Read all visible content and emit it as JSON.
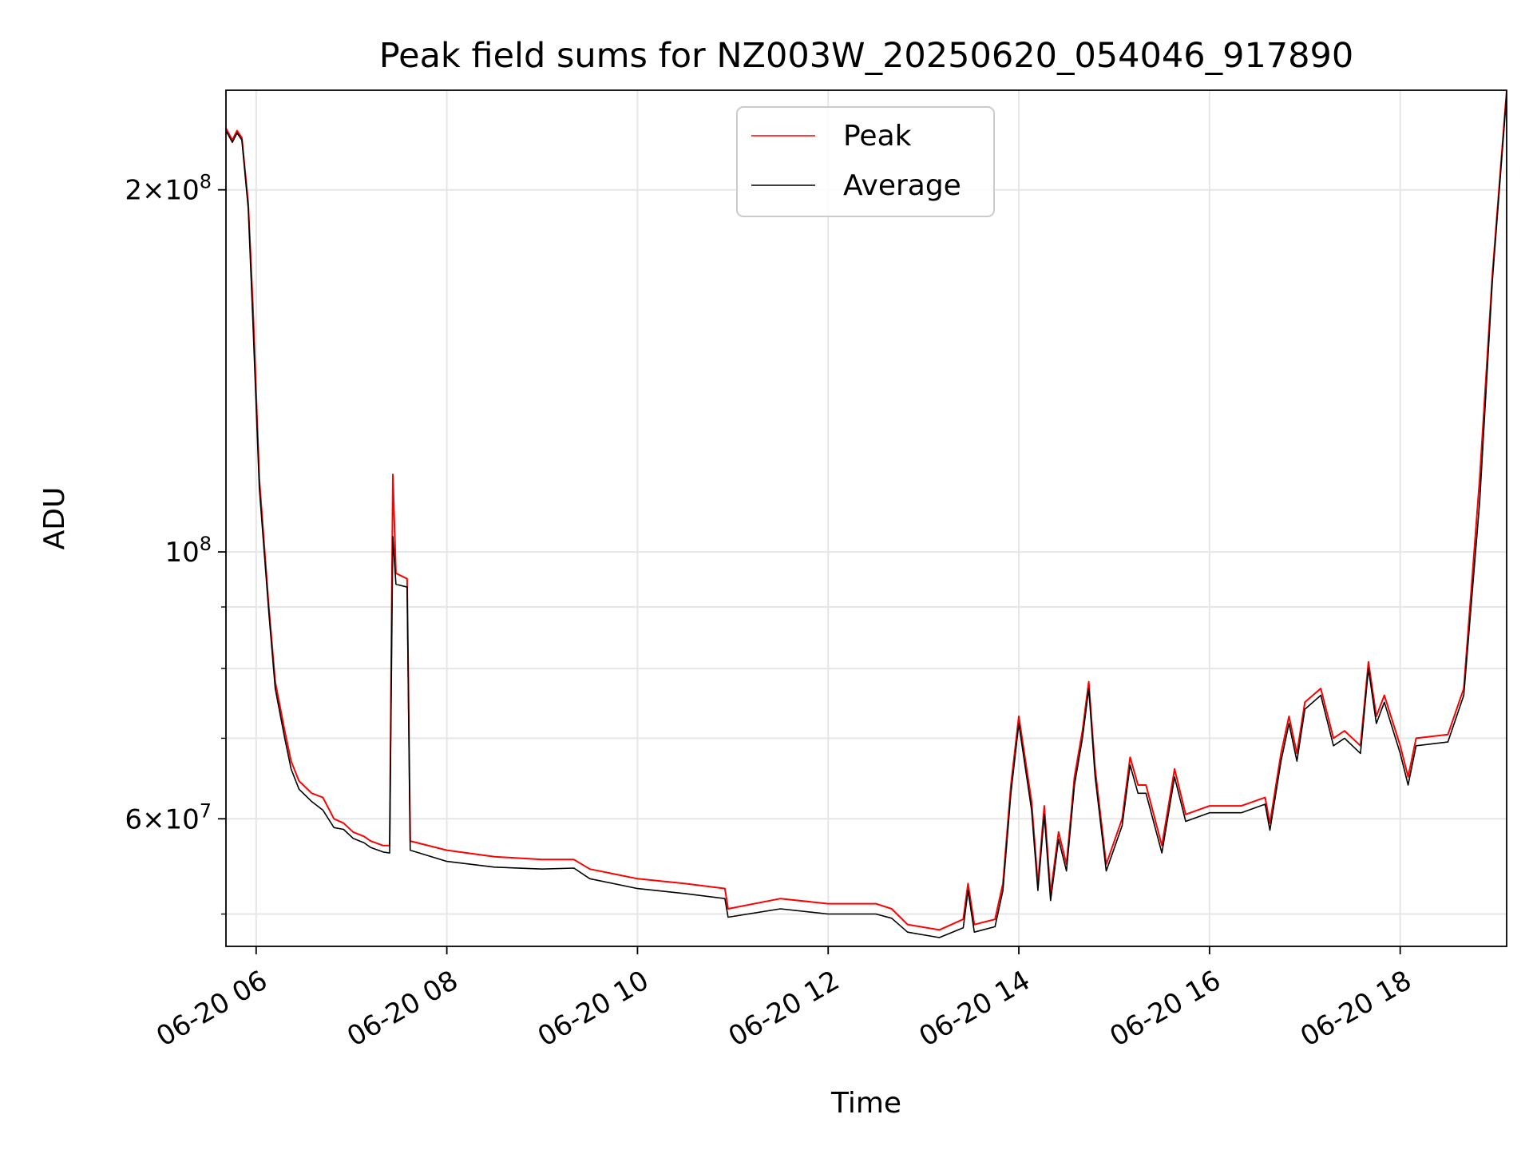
{
  "chart_data": {
    "type": "line",
    "title": "Peak field sums for NZ003W_20250620_054046_917890",
    "xlabel": "Time",
    "ylabel": "ADU",
    "x_scale": "time",
    "y_scale": "log",
    "xlim": [
      "2025-06-20 05:41",
      "2025-06-20 19:07"
    ],
    "ylim": [
      47000000,
      242000000
    ],
    "grid": true,
    "legend_position": "upper-center",
    "x_ticks": [
      {
        "value": "2025-06-20 06:00",
        "label": "06-20 06"
      },
      {
        "value": "2025-06-20 08:00",
        "label": "06-20 08"
      },
      {
        "value": "2025-06-20 10:00",
        "label": "06-20 10"
      },
      {
        "value": "2025-06-20 12:00",
        "label": "06-20 12"
      },
      {
        "value": "2025-06-20 14:00",
        "label": "06-20 14"
      },
      {
        "value": "2025-06-20 16:00",
        "label": "06-20 16"
      },
      {
        "value": "2025-06-20 18:00",
        "label": "06-20 18"
      }
    ],
    "y_major_ticks": [
      {
        "value": 60000000,
        "mantissa": "6",
        "exponent": "7"
      },
      {
        "value": 100000000,
        "mantissa": "",
        "exponent": "8"
      },
      {
        "value": 200000000,
        "mantissa": "2",
        "exponent": "8"
      }
    ],
    "y_minor_ticks": [
      50000000,
      70000000,
      80000000,
      90000000,
      300000000
    ],
    "series": [
      {
        "name": "Peak",
        "color": "#ff0000",
        "points": [
          [
            "2025-06-20 05:41",
            225000000
          ],
          [
            "2025-06-20 05:45",
            220000000
          ],
          [
            "2025-06-20 05:48",
            224000000
          ],
          [
            "2025-06-20 05:51",
            221000000
          ],
          [
            "2025-06-20 05:55",
            195000000
          ],
          [
            "2025-06-20 05:58",
            160000000
          ],
          [
            "2025-06-20 06:02",
            115000000
          ],
          [
            "2025-06-20 06:08",
            90000000
          ],
          [
            "2025-06-20 06:12",
            78000000
          ],
          [
            "2025-06-20 06:18",
            71000000
          ],
          [
            "2025-06-20 06:22",
            67000000
          ],
          [
            "2025-06-20 06:27",
            64500000
          ],
          [
            "2025-06-20 06:35",
            63000000
          ],
          [
            "2025-06-20 06:42",
            62500000
          ],
          [
            "2025-06-20 06:49",
            60000000
          ],
          [
            "2025-06-20 06:55",
            59500000
          ],
          [
            "2025-06-20 07:01",
            58500000
          ],
          [
            "2025-06-20 07:08",
            58000000
          ],
          [
            "2025-06-20 07:12",
            57500000
          ],
          [
            "2025-06-20 07:20",
            57000000
          ],
          [
            "2025-06-20 07:24",
            57000000
          ],
          [
            "2025-06-20 07:26",
            116000000
          ],
          [
            "2025-06-20 07:28",
            96000000
          ],
          [
            "2025-06-20 07:35",
            95000000
          ],
          [
            "2025-06-20 07:37",
            57500000
          ],
          [
            "2025-06-20 08:00",
            56500000
          ],
          [
            "2025-06-20 08:30",
            55800000
          ],
          [
            "2025-06-20 09:00",
            55500000
          ],
          [
            "2025-06-20 09:20",
            55500000
          ],
          [
            "2025-06-20 09:30",
            54500000
          ],
          [
            "2025-06-20 10:00",
            53500000
          ],
          [
            "2025-06-20 10:30",
            53000000
          ],
          [
            "2025-06-20 10:55",
            52500000
          ],
          [
            "2025-06-20 10:57",
            50500000
          ],
          [
            "2025-06-20 11:30",
            51500000
          ],
          [
            "2025-06-20 12:00",
            51000000
          ],
          [
            "2025-06-20 12:30",
            51000000
          ],
          [
            "2025-06-20 12:40",
            50500000
          ],
          [
            "2025-06-20 12:50",
            49000000
          ],
          [
            "2025-06-20 13:10",
            48500000
          ],
          [
            "2025-06-20 13:25",
            49500000
          ],
          [
            "2025-06-20 13:28",
            53000000
          ],
          [
            "2025-06-20 13:32",
            49000000
          ],
          [
            "2025-06-20 13:45",
            49500000
          ],
          [
            "2025-06-20 13:50",
            53000000
          ],
          [
            "2025-06-20 13:55",
            64000000
          ],
          [
            "2025-06-20 14:00",
            73000000
          ],
          [
            "2025-06-20 14:08",
            62000000
          ],
          [
            "2025-06-20 14:12",
            53000000
          ],
          [
            "2025-06-20 14:16",
            61500000
          ],
          [
            "2025-06-20 14:20",
            52000000
          ],
          [
            "2025-06-20 14:25",
            58500000
          ],
          [
            "2025-06-20 14:30",
            55000000
          ],
          [
            "2025-06-20 14:35",
            65000000
          ],
          [
            "2025-06-20 14:40",
            71000000
          ],
          [
            "2025-06-20 14:44",
            78000000
          ],
          [
            "2025-06-20 14:48",
            66000000
          ],
          [
            "2025-06-20 14:55",
            55000000
          ],
          [
            "2025-06-20 15:05",
            60000000
          ],
          [
            "2025-06-20 15:10",
            67500000
          ],
          [
            "2025-06-20 15:15",
            64000000
          ],
          [
            "2025-06-20 15:20",
            64000000
          ],
          [
            "2025-06-20 15:30",
            57000000
          ],
          [
            "2025-06-20 15:38",
            66000000
          ],
          [
            "2025-06-20 15:45",
            60500000
          ],
          [
            "2025-06-20 16:00",
            61500000
          ],
          [
            "2025-06-20 16:20",
            61500000
          ],
          [
            "2025-06-20 16:35",
            62500000
          ],
          [
            "2025-06-20 16:38",
            59500000
          ],
          [
            "2025-06-20 16:45",
            68000000
          ],
          [
            "2025-06-20 16:50",
            73000000
          ],
          [
            "2025-06-20 16:55",
            68000000
          ],
          [
            "2025-06-20 17:00",
            75000000
          ],
          [
            "2025-06-20 17:10",
            77000000
          ],
          [
            "2025-06-20 17:18",
            70000000
          ],
          [
            "2025-06-20 17:25",
            71000000
          ],
          [
            "2025-06-20 17:35",
            69000000
          ],
          [
            "2025-06-20 17:40",
            81000000
          ],
          [
            "2025-06-20 17:45",
            73000000
          ],
          [
            "2025-06-20 17:50",
            76000000
          ],
          [
            "2025-06-20 18:00",
            69000000
          ],
          [
            "2025-06-20 18:05",
            65000000
          ],
          [
            "2025-06-20 18:10",
            70000000
          ],
          [
            "2025-06-20 18:30",
            70500000
          ],
          [
            "2025-06-20 18:40",
            77000000
          ],
          [
            "2025-06-20 18:50",
            115000000
          ],
          [
            "2025-06-20 18:58",
            170000000
          ],
          [
            "2025-06-20 19:07",
            242000000
          ]
        ]
      },
      {
        "name": "Average",
        "color": "#000000",
        "points": [
          [
            "2025-06-20 05:41",
            224000000
          ],
          [
            "2025-06-20 05:45",
            219000000
          ],
          [
            "2025-06-20 05:48",
            223000000
          ],
          [
            "2025-06-20 05:51",
            220000000
          ],
          [
            "2025-06-20 05:55",
            193000000
          ],
          [
            "2025-06-20 05:58",
            155000000
          ],
          [
            "2025-06-20 06:02",
            113000000
          ],
          [
            "2025-06-20 06:08",
            89000000
          ],
          [
            "2025-06-20 06:12",
            77000000
          ],
          [
            "2025-06-20 06:18",
            70000000
          ],
          [
            "2025-06-20 06:22",
            66000000
          ],
          [
            "2025-06-20 06:27",
            63500000
          ],
          [
            "2025-06-20 06:35",
            62000000
          ],
          [
            "2025-06-20 06:42",
            61000000
          ],
          [
            "2025-06-20 06:49",
            59000000
          ],
          [
            "2025-06-20 06:55",
            58800000
          ],
          [
            "2025-06-20 07:01",
            57800000
          ],
          [
            "2025-06-20 07:08",
            57300000
          ],
          [
            "2025-06-20 07:12",
            56800000
          ],
          [
            "2025-06-20 07:20",
            56300000
          ],
          [
            "2025-06-20 07:24",
            56200000
          ],
          [
            "2025-06-20 07:26",
            103000000
          ],
          [
            "2025-06-20 07:28",
            94000000
          ],
          [
            "2025-06-20 07:35",
            93500000
          ],
          [
            "2025-06-20 07:37",
            56500000
          ],
          [
            "2025-06-20 08:00",
            55300000
          ],
          [
            "2025-06-20 08:30",
            54700000
          ],
          [
            "2025-06-20 09:00",
            54500000
          ],
          [
            "2025-06-20 09:20",
            54600000
          ],
          [
            "2025-06-20 09:30",
            53500000
          ],
          [
            "2025-06-20 10:00",
            52500000
          ],
          [
            "2025-06-20 10:30",
            52000000
          ],
          [
            "2025-06-20 10:55",
            51500000
          ],
          [
            "2025-06-20 10:57",
            49700000
          ],
          [
            "2025-06-20 11:30",
            50500000
          ],
          [
            "2025-06-20 12:00",
            50000000
          ],
          [
            "2025-06-20 12:30",
            50000000
          ],
          [
            "2025-06-20 12:40",
            49600000
          ],
          [
            "2025-06-20 12:50",
            48300000
          ],
          [
            "2025-06-20 13:10",
            47800000
          ],
          [
            "2025-06-20 13:25",
            48700000
          ],
          [
            "2025-06-20 13:28",
            52300000
          ],
          [
            "2025-06-20 13:32",
            48300000
          ],
          [
            "2025-06-20 13:45",
            48800000
          ],
          [
            "2025-06-20 13:50",
            52300000
          ],
          [
            "2025-06-20 13:55",
            63000000
          ],
          [
            "2025-06-20 14:00",
            72000000
          ],
          [
            "2025-06-20 14:08",
            61000000
          ],
          [
            "2025-06-20 14:12",
            52300000
          ],
          [
            "2025-06-20 14:16",
            60500000
          ],
          [
            "2025-06-20 14:20",
            51300000
          ],
          [
            "2025-06-20 14:25",
            57700000
          ],
          [
            "2025-06-20 14:30",
            54300000
          ],
          [
            "2025-06-20 14:35",
            64000000
          ],
          [
            "2025-06-20 14:40",
            70000000
          ],
          [
            "2025-06-20 14:44",
            77000000
          ],
          [
            "2025-06-20 14:48",
            65000000
          ],
          [
            "2025-06-20 14:55",
            54300000
          ],
          [
            "2025-06-20 15:05",
            59200000
          ],
          [
            "2025-06-20 15:10",
            66500000
          ],
          [
            "2025-06-20 15:15",
            63000000
          ],
          [
            "2025-06-20 15:20",
            63000000
          ],
          [
            "2025-06-20 15:30",
            56200000
          ],
          [
            "2025-06-20 15:38",
            65000000
          ],
          [
            "2025-06-20 15:45",
            59700000
          ],
          [
            "2025-06-20 16:00",
            60700000
          ],
          [
            "2025-06-20 16:20",
            60700000
          ],
          [
            "2025-06-20 16:35",
            61700000
          ],
          [
            "2025-06-20 16:38",
            58700000
          ],
          [
            "2025-06-20 16:45",
            67000000
          ],
          [
            "2025-06-20 16:50",
            72000000
          ],
          [
            "2025-06-20 16:55",
            67000000
          ],
          [
            "2025-06-20 17:00",
            74000000
          ],
          [
            "2025-06-20 17:10",
            76000000
          ],
          [
            "2025-06-20 17:18",
            69000000
          ],
          [
            "2025-06-20 17:25",
            70000000
          ],
          [
            "2025-06-20 17:35",
            68000000
          ],
          [
            "2025-06-20 17:40",
            80000000
          ],
          [
            "2025-06-20 17:45",
            72000000
          ],
          [
            "2025-06-20 17:50",
            75000000
          ],
          [
            "2025-06-20 18:00",
            68000000
          ],
          [
            "2025-06-20 18:05",
            64000000
          ],
          [
            "2025-06-20 18:10",
            69000000
          ],
          [
            "2025-06-20 18:30",
            69500000
          ],
          [
            "2025-06-20 18:40",
            76000000
          ],
          [
            "2025-06-20 18:50",
            110000000
          ],
          [
            "2025-06-20 18:58",
            168000000
          ],
          [
            "2025-06-20 19:07",
            240000000
          ]
        ]
      }
    ]
  }
}
